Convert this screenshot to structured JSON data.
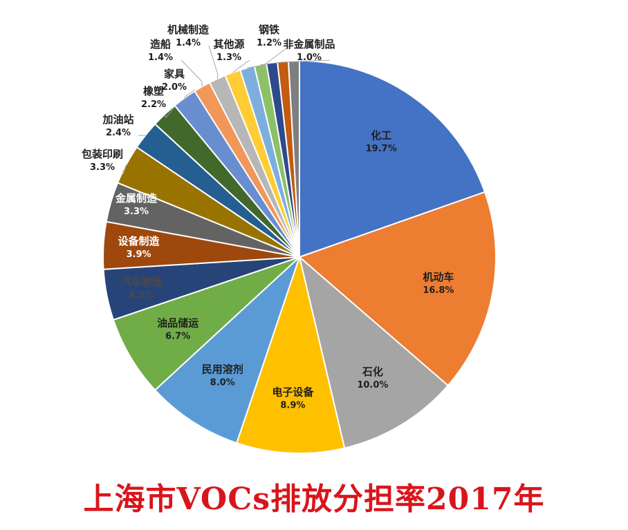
{
  "chart_data": {
    "type": "pie",
    "title": "上海市VOCs排放分担率2017年",
    "unit": "%",
    "slices": [
      {
        "label": "化工",
        "value": 19.7,
        "text": "19.7%",
        "color": "#4472C4"
      },
      {
        "label": "机动车",
        "value": 16.8,
        "text": "16.8%",
        "color": "#ED7D31"
      },
      {
        "label": "石化",
        "value": 10.0,
        "text": "10.0%",
        "color": "#A5A5A5"
      },
      {
        "label": "电子设备",
        "value": 8.9,
        "text": "8.9%",
        "color": "#FFC000"
      },
      {
        "label": "民用溶剂",
        "value": 8.0,
        "text": "8.0%",
        "color": "#5B9BD5"
      },
      {
        "label": "油品储运",
        "value": 6.7,
        "text": "6.7%",
        "color": "#70AD47"
      },
      {
        "label": "汽车制造",
        "value": 4.2,
        "text": "4.2%",
        "color": "#264478"
      },
      {
        "label": "设备制造",
        "value": 3.9,
        "text": "3.9%",
        "color": "#9E480E"
      },
      {
        "label": "金属制造",
        "value": 3.3,
        "text": "3.3%",
        "color": "#636363"
      },
      {
        "label": "包装印刷",
        "value": 3.3,
        "text": "3.3%",
        "color": "#997300"
      },
      {
        "label": "加油站",
        "value": 2.4,
        "text": "2.4%",
        "color": "#255E91"
      },
      {
        "label": "橡塑",
        "value": 2.2,
        "text": "2.2%",
        "color": "#43682B"
      },
      {
        "label": "家具",
        "value": 2.0,
        "text": "2.0%",
        "color": "#698ED0"
      },
      {
        "label": "造船",
        "value": 1.4,
        "text": "1.4%",
        "color": "#F1975A"
      },
      {
        "label": "机械制造",
        "value": 1.4,
        "text": "1.4%",
        "color": "#B7B7B7"
      },
      {
        "label": "其他源",
        "value": 1.3,
        "text": "1.3%",
        "color": "#FFCD33"
      },
      {
        "label": "钢铁",
        "value": 1.2,
        "text": "1.2%",
        "color": "#7CAFDD"
      },
      {
        "label": "非金属制品",
        "value": 1.0,
        "text": "1.0%",
        "color": "#8CC168"
      },
      {
        "label": "",
        "value": 0.9,
        "text": "",
        "color": "#2E4A8C"
      },
      {
        "label": "",
        "value": 0.9,
        "text": "",
        "color": "#C55A11"
      },
      {
        "label": "",
        "value": 0.9,
        "text": "",
        "color": "#7F7F7F"
      }
    ]
  }
}
